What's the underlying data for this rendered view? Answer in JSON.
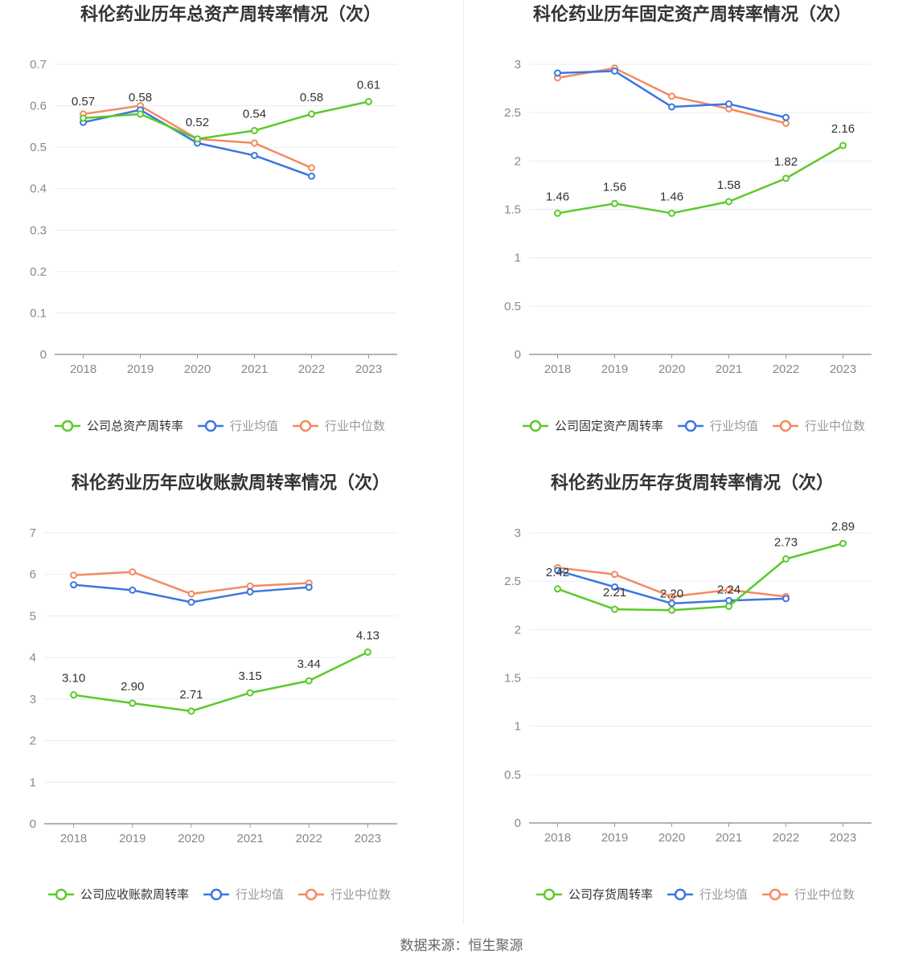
{
  "source": "数据来源：恒生聚源",
  "colors": {
    "company": "#5cc92a",
    "avg": "#3d76e0",
    "median": "#f38a62"
  },
  "chart_data": [
    {
      "type": "line",
      "title": "科伦药业历年总资产周转率情况（次）",
      "categories": [
        "2018",
        "2019",
        "2020",
        "2021",
        "2022",
        "2023"
      ],
      "ylim": [
        0,
        0.7
      ],
      "yticks": [
        0,
        0.1,
        0.2,
        0.3,
        0.4,
        0.5,
        0.6,
        0.7
      ],
      "ytick_labels": [
        "0",
        "0.1",
        "0.2",
        "0.3",
        "0.4",
        "0.5",
        "0.6",
        "0.7"
      ],
      "grid": true,
      "legend": "bottom",
      "series": [
        {
          "name": "公司总资产周转率",
          "color": "#5cc92a",
          "values": [
            0.57,
            0.58,
            0.52,
            0.54,
            0.58,
            0.61
          ],
          "labels": [
            "0.57",
            "0.58",
            "0.52",
            "0.54",
            "0.58",
            "0.61"
          ]
        },
        {
          "name": "行业均值",
          "color": "#3d76e0",
          "values": [
            0.56,
            0.59,
            0.51,
            0.48,
            0.43,
            null
          ]
        },
        {
          "name": "行业中位数",
          "color": "#f38a62",
          "values": [
            0.58,
            0.6,
            0.52,
            0.51,
            0.45,
            null
          ]
        }
      ]
    },
    {
      "type": "line",
      "title": "科伦药业历年固定资产周转率情况（次）",
      "categories": [
        "2018",
        "2019",
        "2020",
        "2021",
        "2022",
        "2023"
      ],
      "ylim": [
        0,
        3
      ],
      "yticks": [
        0,
        0.5,
        1,
        1.5,
        2,
        2.5,
        3
      ],
      "ytick_labels": [
        "0",
        "0.5",
        "1",
        "1.5",
        "2",
        "2.5",
        "3"
      ],
      "grid": true,
      "legend": "bottom",
      "series": [
        {
          "name": "公司固定资产周转率",
          "color": "#5cc92a",
          "values": [
            1.46,
            1.56,
            1.46,
            1.58,
            1.82,
            2.16
          ],
          "labels": [
            "1.46",
            "1.56",
            "1.46",
            "1.58",
            "1.82",
            "2.16"
          ]
        },
        {
          "name": "行业均值",
          "color": "#3d76e0",
          "values": [
            2.91,
            2.93,
            2.56,
            2.59,
            2.45,
            null
          ]
        },
        {
          "name": "行业中位数",
          "color": "#f38a62",
          "values": [
            2.86,
            2.96,
            2.67,
            2.54,
            2.39,
            null
          ]
        }
      ]
    },
    {
      "type": "line",
      "title": "科伦药业历年应收账款周转率情况（次）",
      "categories": [
        "2018",
        "2019",
        "2020",
        "2021",
        "2022",
        "2023"
      ],
      "ylim": [
        0,
        7
      ],
      "yticks": [
        0,
        1,
        2,
        3,
        4,
        5,
        6,
        7
      ],
      "ytick_labels": [
        "0",
        "1",
        "2",
        "3",
        "4",
        "5",
        "6",
        "7"
      ],
      "grid": true,
      "legend": "bottom",
      "series": [
        {
          "name": "公司应收账款周转率",
          "color": "#5cc92a",
          "values": [
            3.1,
            2.9,
            2.71,
            3.15,
            3.44,
            4.13
          ],
          "labels": [
            "3.10",
            "2.90",
            "2.71",
            "3.15",
            "3.44",
            "4.13"
          ]
        },
        {
          "name": "行业均值",
          "color": "#3d76e0",
          "values": [
            5.75,
            5.62,
            5.33,
            5.58,
            5.69,
            null
          ]
        },
        {
          "name": "行业中位数",
          "color": "#f38a62",
          "values": [
            5.98,
            6.06,
            5.53,
            5.72,
            5.79,
            null
          ]
        }
      ]
    },
    {
      "type": "line",
      "title": "科伦药业历年存货周转率情况（次）",
      "categories": [
        "2018",
        "2019",
        "2020",
        "2021",
        "2022",
        "2023"
      ],
      "ylim": [
        0,
        3
      ],
      "yticks": [
        0,
        0.5,
        1,
        1.5,
        2,
        2.5,
        3
      ],
      "ytick_labels": [
        "0",
        "0.5",
        "1",
        "1.5",
        "2",
        "2.5",
        "3"
      ],
      "grid": true,
      "legend": "bottom",
      "series": [
        {
          "name": "公司存货周转率",
          "color": "#5cc92a",
          "values": [
            2.42,
            2.21,
            2.2,
            2.24,
            2.73,
            2.89
          ],
          "labels": [
            "2.42",
            "2.21",
            "2.20",
            "2.24",
            "2.73",
            "2.89"
          ]
        },
        {
          "name": "行业均值",
          "color": "#3d76e0",
          "values": [
            2.61,
            2.44,
            2.27,
            2.3,
            2.32,
            null
          ]
        },
        {
          "name": "行业中位数",
          "color": "#f38a62",
          "values": [
            2.64,
            2.57,
            2.34,
            2.41,
            2.34,
            null
          ]
        }
      ]
    }
  ]
}
